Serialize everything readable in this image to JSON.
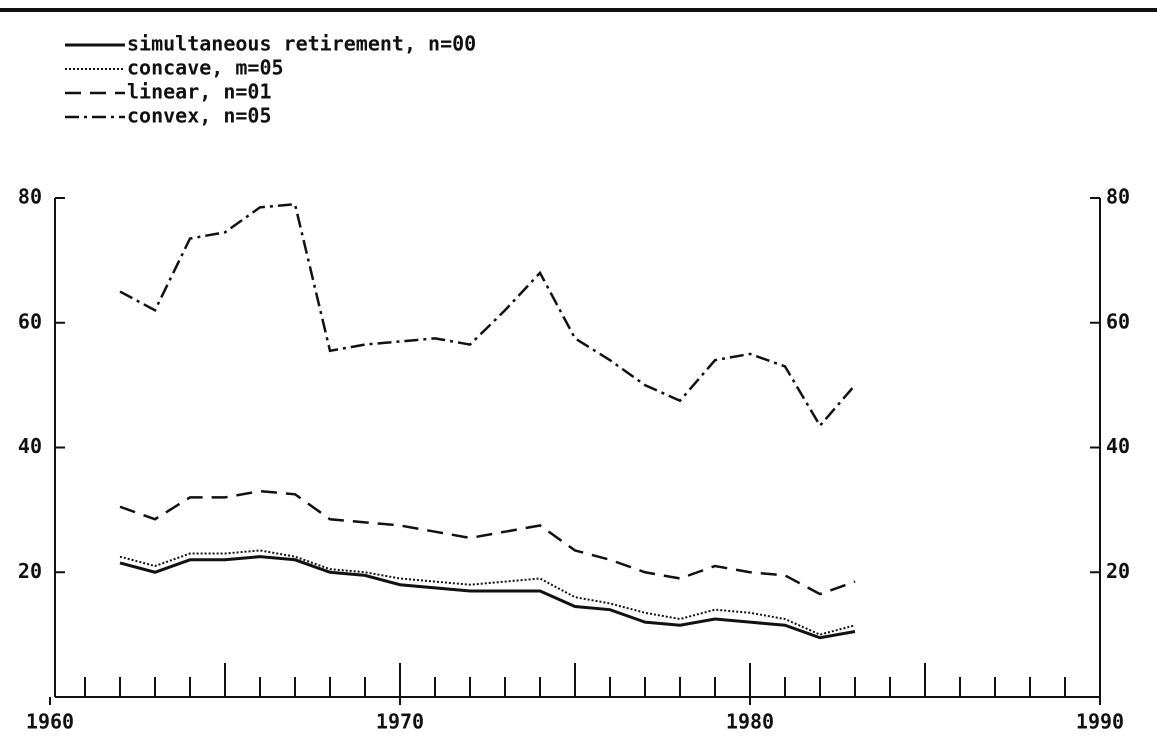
{
  "chart_data": {
    "type": "line",
    "x": [
      1962,
      1963,
      1964,
      1965,
      1966,
      1967,
      1968,
      1969,
      1970,
      1971,
      1972,
      1973,
      1974,
      1975,
      1976,
      1977,
      1978,
      1979,
      1980,
      1981,
      1982,
      1983
    ],
    "series": [
      {
        "name": "simultaneous retirement, n=00",
        "color": "#111111",
        "style": "solid",
        "values": [
          21.5,
          20,
          22,
          22,
          22.5,
          22,
          20,
          19.5,
          18,
          17.5,
          17,
          17,
          17,
          14.5,
          14,
          12,
          11.5,
          12.5,
          12,
          11.5,
          9.5,
          10.5
        ]
      },
      {
        "name": "concave, m=05",
        "color": "#111111",
        "style": "dotted",
        "values": [
          22.5,
          21,
          23,
          23,
          23.5,
          22.5,
          20.5,
          20,
          19,
          18.5,
          18,
          18.5,
          19,
          16,
          15,
          13.5,
          12.5,
          14,
          13.5,
          12.5,
          10,
          11.5
        ]
      },
      {
        "name": "linear, n=01",
        "color": "#111111",
        "style": "dashed",
        "values": [
          30.5,
          28.5,
          32,
          32,
          33,
          32.5,
          28.5,
          28,
          27.5,
          26.5,
          25.5,
          26.5,
          27.5,
          23.5,
          22,
          20,
          19,
          21,
          20,
          19.5,
          16.5,
          18.5
        ]
      },
      {
        "name": "convex, n=05",
        "color": "#111111",
        "style": "dashdot",
        "values": [
          65,
          62,
          73.5,
          74.5,
          78.5,
          79,
          55.5,
          56.5,
          57,
          57.5,
          56.5,
          62,
          68,
          57.5,
          54,
          50,
          47.5,
          54,
          55,
          53,
          43.5,
          50
        ]
      }
    ],
    "xlim": [
      1960,
      1990
    ],
    "xticks": [
      1960,
      1970,
      1980,
      1990
    ],
    "ylim": [
      0,
      80
    ],
    "yticks": [
      20,
      40,
      60,
      80
    ]
  }
}
